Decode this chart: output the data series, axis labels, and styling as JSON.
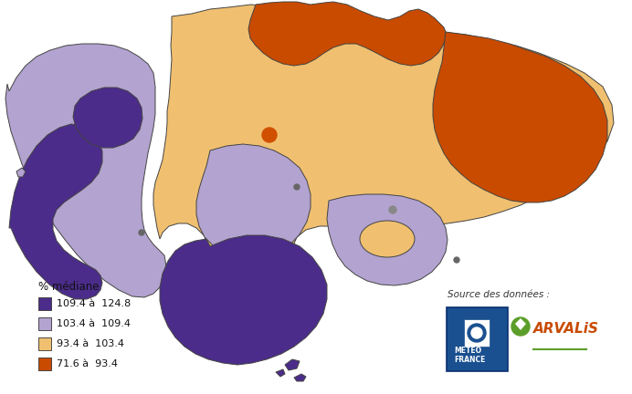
{
  "legend_title": "% médiane",
  "legend_items": [
    {
      "label": "109.4 à  124.8",
      "color": "#4B2C8A"
    },
    {
      "label": "103.4 à  109.4",
      "color": "#B3A3D0"
    },
    {
      "label": "93.4 à  103.4",
      "color": "#F0C070"
    },
    {
      "label": "71.6 à  93.4",
      "color": "#C84B00"
    }
  ],
  "colors": {
    "dark_purple": "#4B2C8A",
    "light_purple": "#B3A3D0",
    "light_orange": "#F0C070",
    "dark_orange": "#C84B00",
    "background": "#FFFFFF",
    "border": "#444444"
  },
  "source_text": "Source des données :",
  "figsize": [
    6.92,
    4.32
  ],
  "dpi": 100
}
